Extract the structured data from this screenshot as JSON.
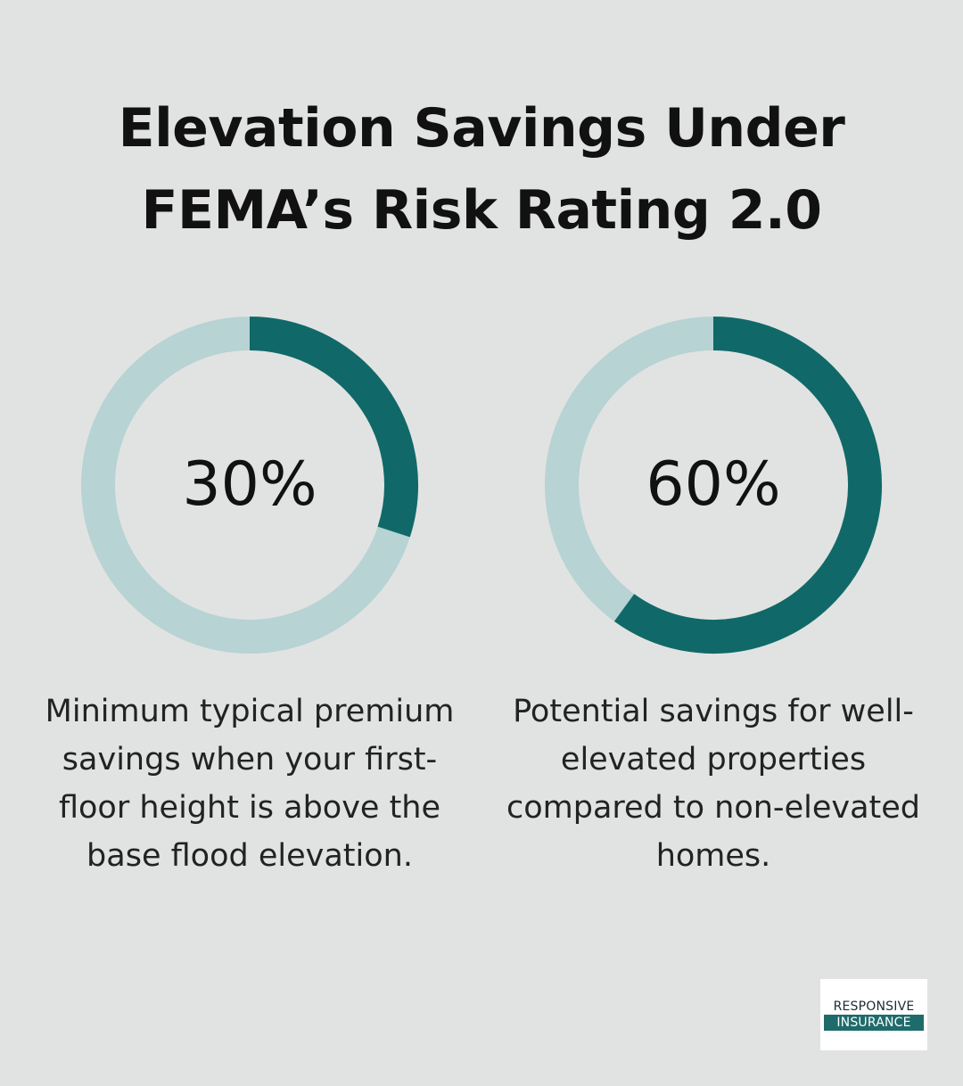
{
  "title": "Elevation Savings Under FEMA’s Risk Rating 2.0",
  "colors": {
    "background": "#e1e3e2",
    "filled": "#106968",
    "track": "#b7d3d4",
    "text": "#111111"
  },
  "chart_data": [
    {
      "type": "pie",
      "variant": "donut",
      "value": 30,
      "max": 100,
      "label": "30%",
      "description": "Minimum typical premium savings when your first-floor height is above the base flood elevation."
    },
    {
      "type": "pie",
      "variant": "donut",
      "value": 60,
      "max": 100,
      "label": "60%",
      "description": "Potential savings for well-elevated properties compared to non-elevated homes."
    }
  ],
  "logo": {
    "line1": "RESPONSIVE",
    "line2": "INSURANCE"
  }
}
